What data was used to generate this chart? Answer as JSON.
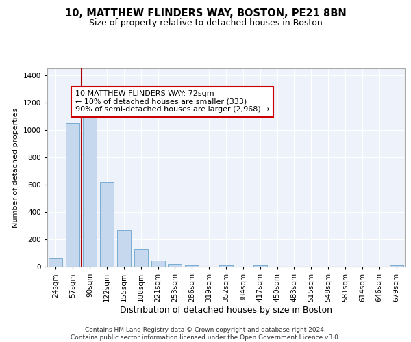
{
  "title": "10, MATTHEW FLINDERS WAY, BOSTON, PE21 8BN",
  "subtitle": "Size of property relative to detached houses in Boston",
  "xlabel": "Distribution of detached houses by size in Boston",
  "ylabel": "Number of detached properties",
  "categories": [
    "24sqm",
    "57sqm",
    "90sqm",
    "122sqm",
    "155sqm",
    "188sqm",
    "221sqm",
    "253sqm",
    "286sqm",
    "319sqm",
    "352sqm",
    "384sqm",
    "417sqm",
    "450sqm",
    "483sqm",
    "515sqm",
    "548sqm",
    "581sqm",
    "614sqm",
    "646sqm",
    "679sqm"
  ],
  "values": [
    65,
    1050,
    1130,
    620,
    270,
    130,
    45,
    20,
    12,
    0,
    12,
    0,
    12,
    0,
    0,
    0,
    0,
    0,
    0,
    0,
    12
  ],
  "bar_color": "#c5d8ee",
  "bar_edge_color": "#7aadd4",
  "property_line_color": "#aa0000",
  "annotation_line1": "10 MATTHEW FLINDERS WAY: 72sqm",
  "annotation_line2": "← 10% of detached houses are smaller (333)",
  "annotation_line3": "90% of semi-detached houses are larger (2,968) →",
  "annotation_box_color": "#ffffff",
  "annotation_box_edge_color": "#cc0000",
  "ylim": [
    0,
    1450
  ],
  "yticks": [
    0,
    200,
    400,
    600,
    800,
    1000,
    1200,
    1400
  ],
  "background_color": "#eef2fa",
  "grid_color": "#ffffff",
  "footer_text": "Contains HM Land Registry data © Crown copyright and database right 2024.\nContains public sector information licensed under the Open Government Licence v3.0.",
  "title_fontsize": 10.5,
  "subtitle_fontsize": 9,
  "xlabel_fontsize": 9,
  "ylabel_fontsize": 8,
  "annotation_fontsize": 8,
  "tick_fontsize": 7.5
}
